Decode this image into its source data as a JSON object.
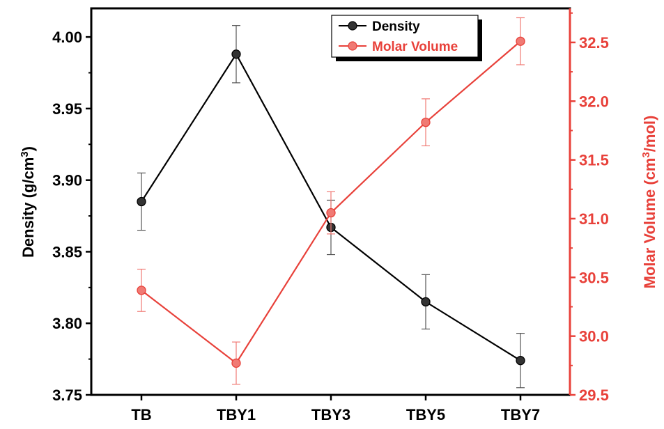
{
  "chart_data": {
    "type": "line",
    "categories": [
      "TB",
      "TBY1",
      "TBY3",
      "TBY5",
      "TBY7"
    ],
    "series": [
      {
        "name": "Density",
        "axis": "left",
        "color": "#000000",
        "values": [
          3.885,
          3.988,
          3.867,
          3.815,
          3.774
        ],
        "errors": [
          0.02,
          0.02,
          0.019,
          0.019,
          0.019
        ]
      },
      {
        "name": "Molar Volume",
        "axis": "right",
        "color": "#e8413a",
        "values": [
          30.39,
          29.77,
          31.05,
          31.82,
          32.51
        ],
        "errors": [
          0.18,
          0.18,
          0.18,
          0.2,
          0.2
        ]
      }
    ],
    "y_left": {
      "label": "Density (g/cm",
      "label_sup": "3",
      "label_end": ")",
      "lim": [
        3.75,
        4.02
      ],
      "ticks": [
        "3.75",
        "3.80",
        "3.85",
        "3.90",
        "3.95",
        "4.00"
      ]
    },
    "y_right": {
      "label": "Molar Volume (cm",
      "label_sup": "3",
      "label_end": "/mol)",
      "lim": [
        29.5,
        32.79
      ],
      "ticks": [
        "29.5",
        "30.0",
        "30.5",
        "31.0",
        "31.5",
        "32.0",
        "32.5"
      ],
      "color": "#e8413a"
    },
    "legend_position": "top-right",
    "grid": false
  }
}
